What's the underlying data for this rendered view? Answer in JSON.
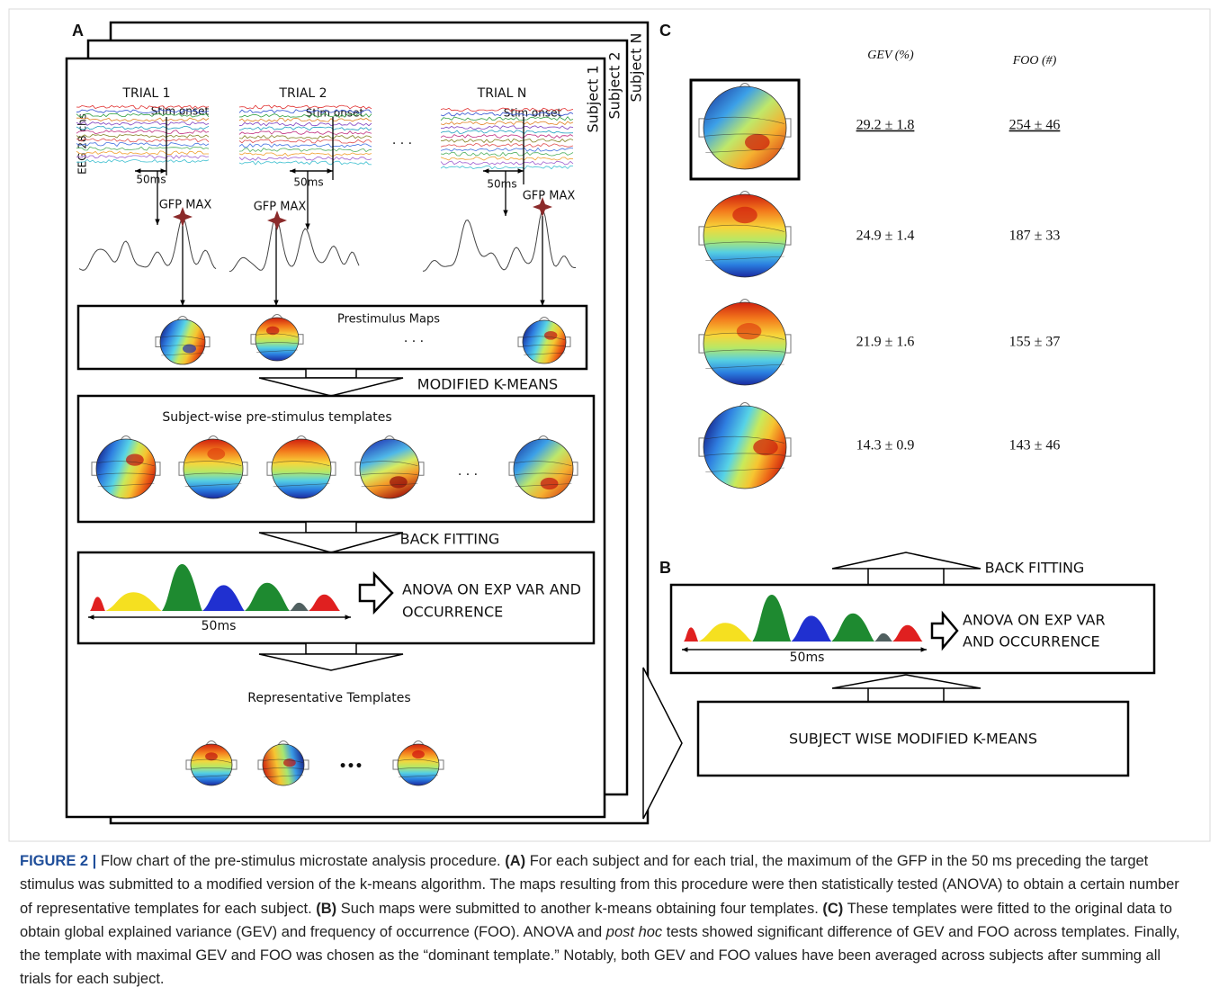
{
  "panel_a": {
    "label": "A",
    "subjects": [
      "Subject 1",
      "Subject 2",
      "Subject N"
    ],
    "eeg_label": "EEG 28 chs",
    "trials": [
      {
        "title": "TRIAL 1",
        "stim": "Stim onset",
        "window": "50ms",
        "gfp": "GFP MAX"
      },
      {
        "title": "TRIAL 2",
        "stim": "Stim onset",
        "window": "50ms",
        "gfp": "GFP MAX"
      },
      {
        "title": "TRIAL N",
        "stim": "Stim onset",
        "window": "50ms",
        "gfp": "GFP MAX"
      }
    ],
    "trial_ellipsis": "· · ·",
    "prestimulus_maps": "Prestimulus Maps",
    "maps_ellipsis": "· · ·",
    "modified_kmeans": "MODIFIED K-MEANS",
    "subject_templates": "Subject-wise pre-stimulus templates",
    "templates_ellipsis": "· · ·",
    "back_fitting": "BACK FITTING",
    "anova": [
      "ANOVA ON EXP VAR AND",
      "OCCURRENCE"
    ],
    "window": "50ms",
    "representative_templates": "Representative Templates",
    "representative_ellipsis": "•••"
  },
  "panel_b": {
    "label": "B",
    "back_fitting": "BACK FITTING",
    "anova": [
      "ANOVA ON EXP VAR",
      "AND OCCURRENCE"
    ],
    "window": "50ms",
    "subject_kmeans": "SUBJECT WISE MODIFIED K-MEANS"
  },
  "panel_c": {
    "label": "C",
    "columns": [
      "GEV (%)",
      "FOO (#)"
    ],
    "rows": [
      [
        "29.2 ± 1.8",
        "254 ± 46"
      ],
      [
        "24.9 ± 1.4",
        "187 ± 33"
      ],
      [
        "21.9 ± 1.6",
        "155 ± 37"
      ],
      [
        "14.3 ± 0.9",
        "143 ± 46"
      ]
    ]
  },
  "caption": [
    "FIGURE 2 |",
    " Flow chart of the pre-stimulus microstate analysis procedure. ",
    "(A)",
    " For each subject and for each trial, the maximum of the GFP in the 50 ms preceding the target stimulus was submitted to a modified version of the k-means algorithm. The maps resulting from this procedure were then statistically tested (ANOVA) to obtain a certain number of representative templates for each subject. ",
    "(B)",
    " Such maps were submitted to another k-means obtaining four templates. ",
    "(C)",
    " These templates were fitted to the original data to obtain global explained variance (GEV) and frequency of occurrence (FOO). ANOVA and ",
    "post hoc",
    " tests showed significant difference of GEV and FOO across templates. Finally, the template with maximal GEV and FOO was chosen as the “dominant template.” Notably, both GEV and FOO values have been averaged across subjects after summing all trials for each subject."
  ]
}
